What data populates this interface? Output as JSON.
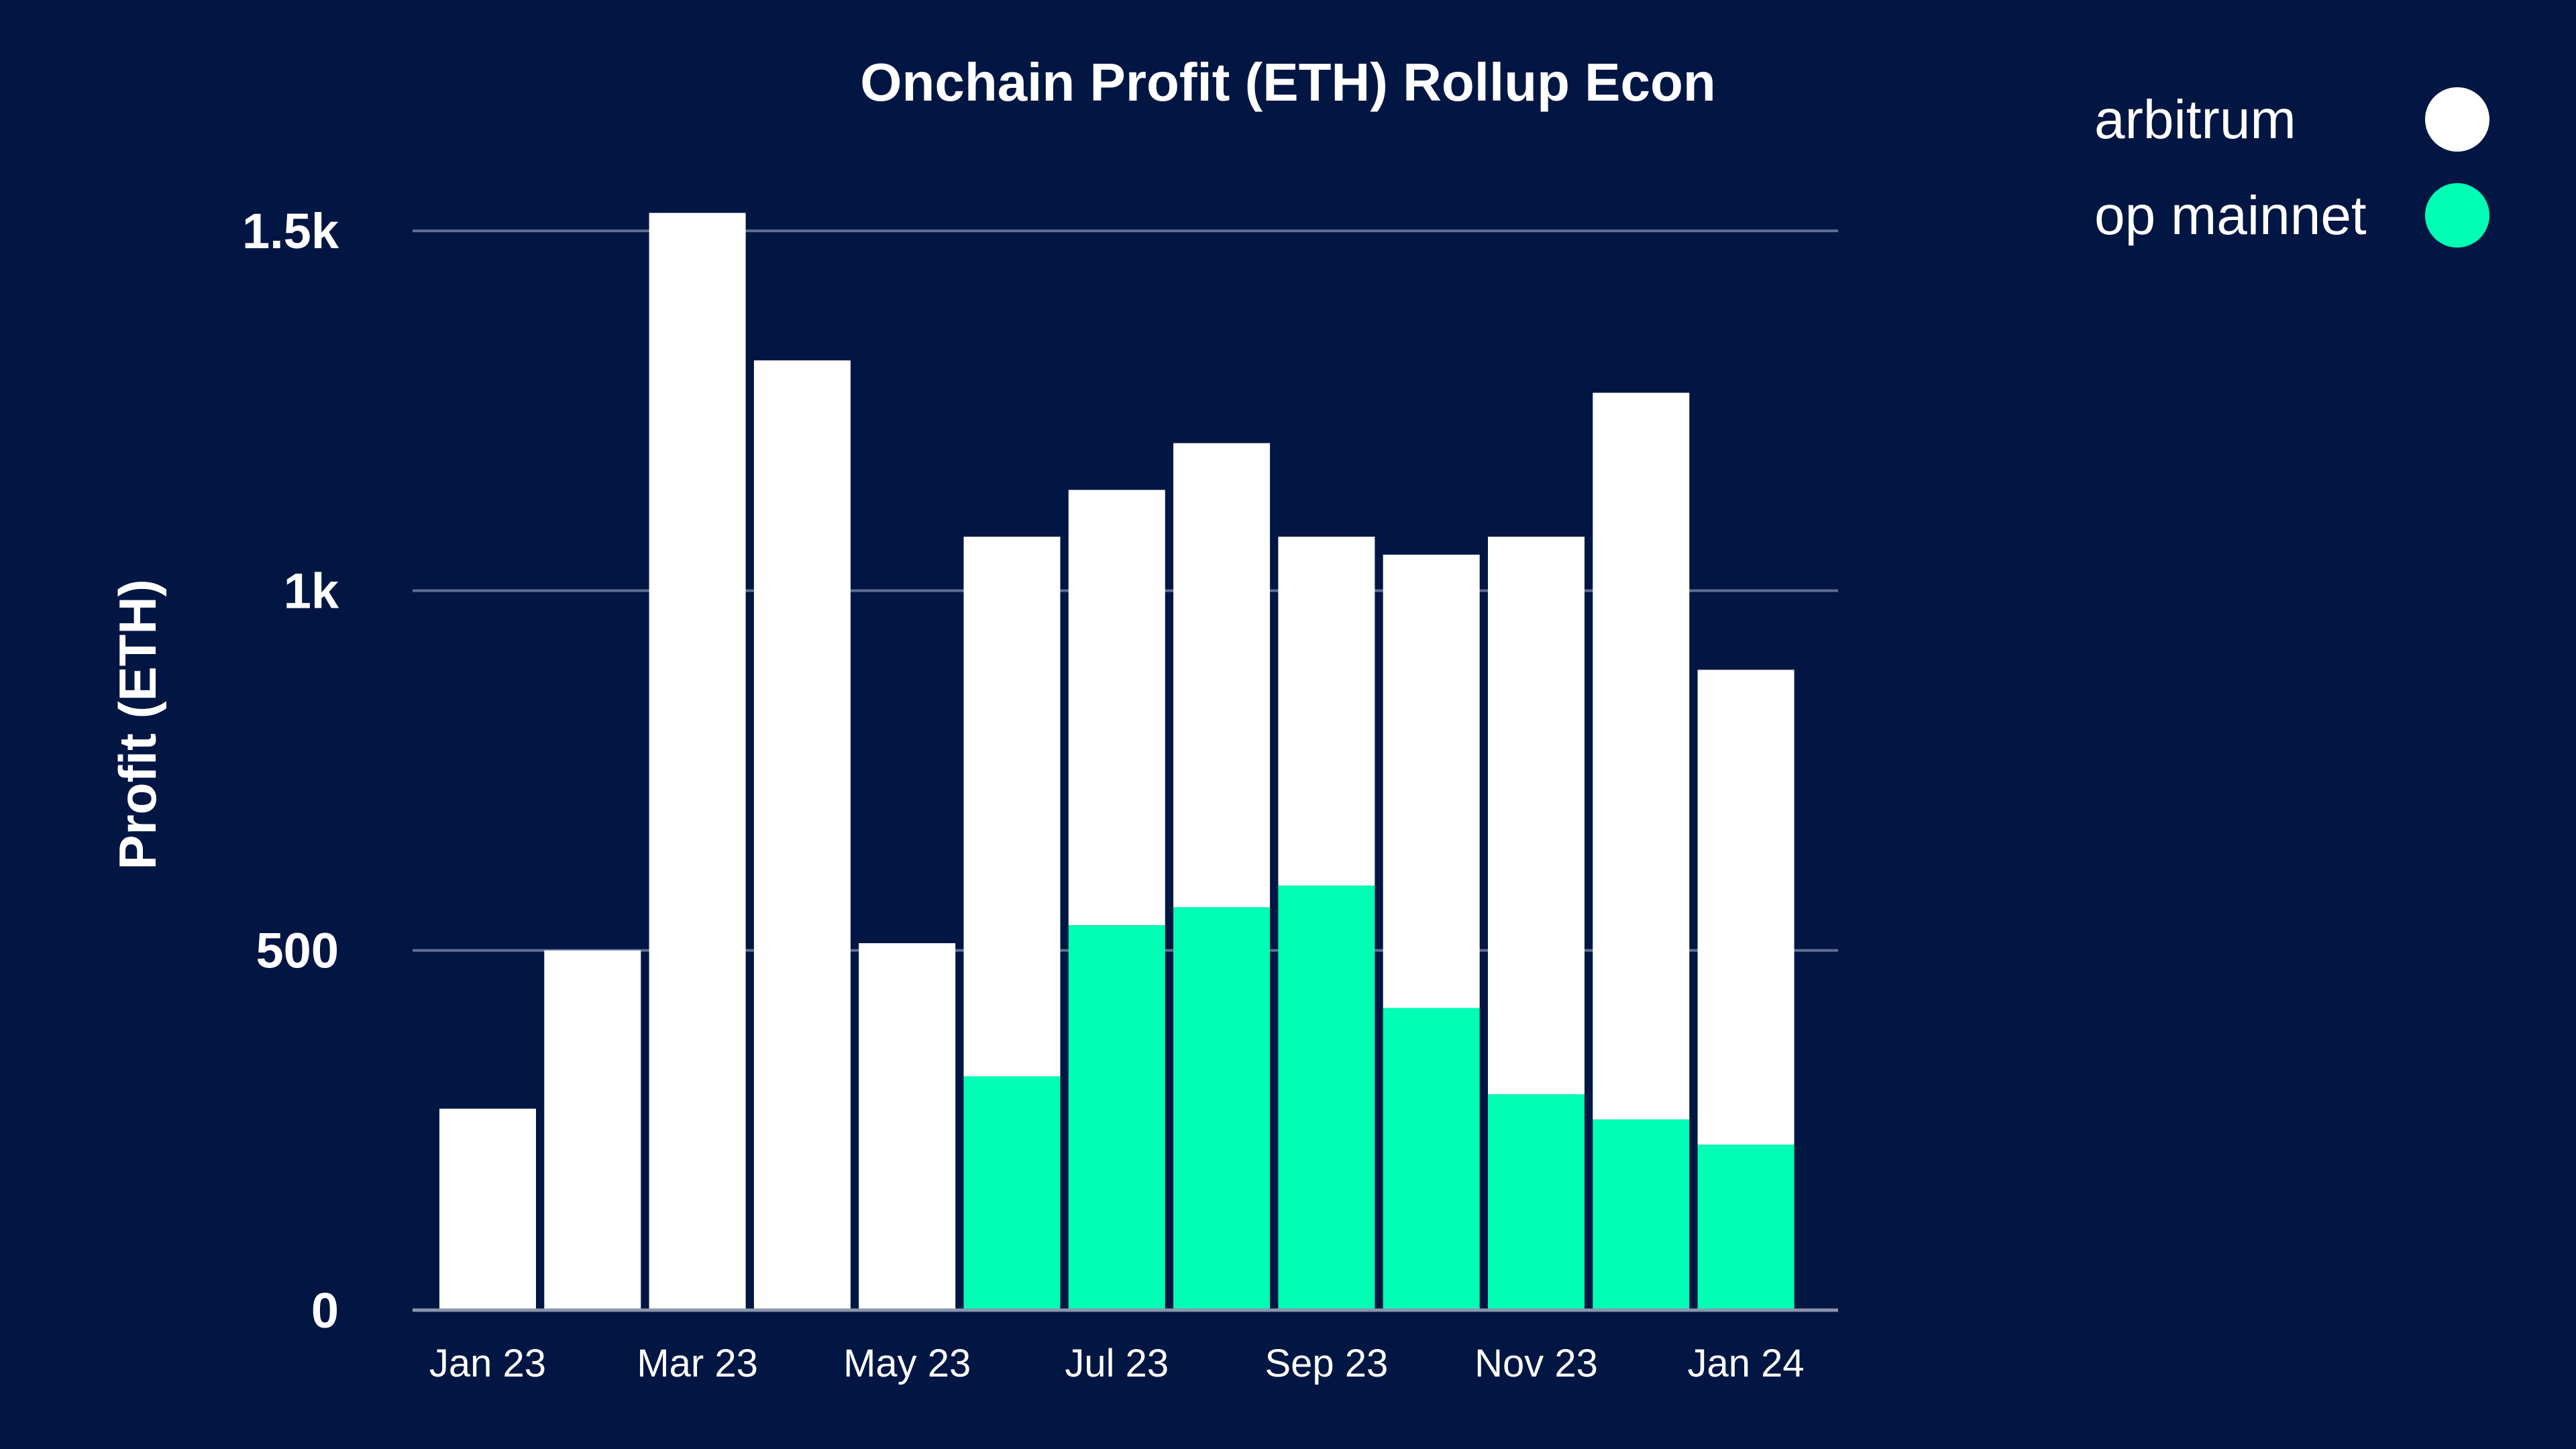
{
  "chart_data": {
    "type": "bar",
    "stacked": true,
    "title": "Onchain Profit (ETH) Rollup Econ",
    "xlabel": "",
    "ylabel": "Profit (ETH)",
    "ylim": [
      0,
      1530
    ],
    "yticks": [
      {
        "value": 0,
        "label": "0"
      },
      {
        "value": 500,
        "label": "500"
      },
      {
        "value": 1000,
        "label": "1k"
      },
      {
        "value": 1500,
        "label": "1.5k"
      }
    ],
    "categories": [
      "Jan 23",
      "Feb 23",
      "Mar 23",
      "Apr 23",
      "May 23",
      "Jun 23",
      "Jul 23",
      "Aug 23",
      "Sep 23",
      "Oct 23",
      "Nov 23",
      "Dec 23",
      "Jan 24"
    ],
    "xtick_labels": [
      {
        "category": "Jan 23",
        "label": "Jan 23"
      },
      {
        "category": "Mar 23",
        "label": "Mar 23"
      },
      {
        "category": "May 23",
        "label": "May 23"
      },
      {
        "category": "Jul 23",
        "label": "Jul 23"
      },
      {
        "category": "Sep 23",
        "label": "Sep 23"
      },
      {
        "category": "Nov 23",
        "label": "Nov 23"
      },
      {
        "category": "Jan 24",
        "label": "Jan 24"
      }
    ],
    "series": [
      {
        "name": "op mainnet",
        "color": "#00ffb4",
        "values": [
          0,
          0,
          0,
          0,
          0,
          325,
          535,
          560,
          590,
          420,
          300,
          265,
          230
        ]
      },
      {
        "name": "arbitrum",
        "color": "#ffffff",
        "values": [
          280,
          500,
          1525,
          1320,
          510,
          750,
          605,
          645,
          485,
          630,
          775,
          1010,
          660
        ]
      }
    ],
    "legend": {
      "position": "top-right",
      "entries": [
        {
          "label": "arbitrum",
          "color": "#ffffff"
        },
        {
          "label": "op mainnet",
          "color": "#00ffb4"
        }
      ]
    },
    "grid": true,
    "colors": {
      "background": "#011643",
      "text": "#ffffff",
      "gridline": "#5f6f8f"
    }
  }
}
